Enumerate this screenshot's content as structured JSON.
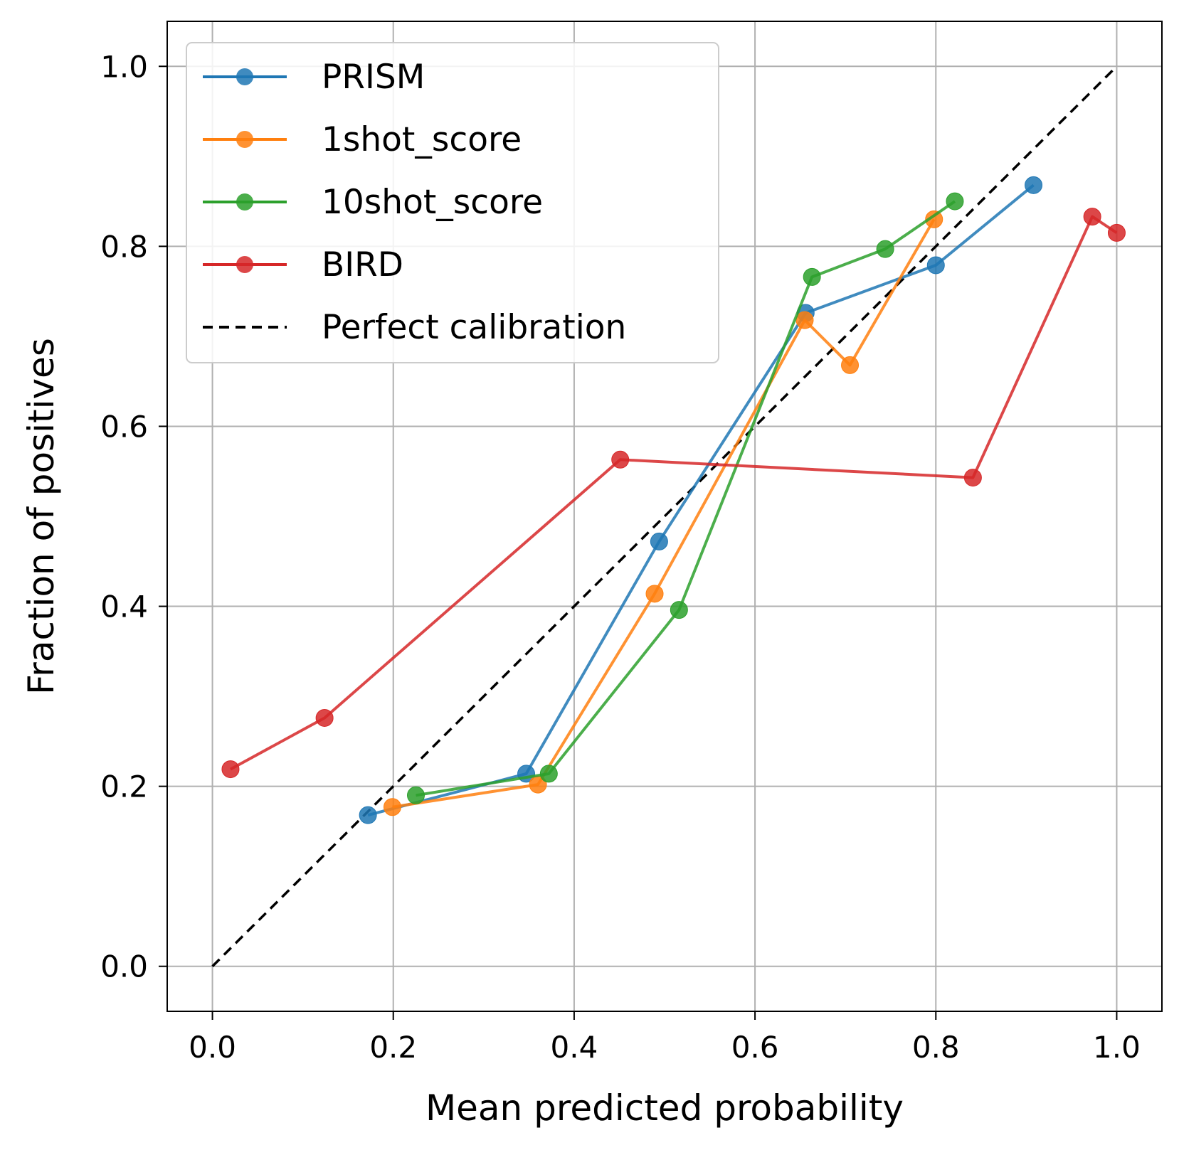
{
  "chart_data": {
    "type": "line",
    "title": "",
    "xlabel": "Mean predicted probability",
    "ylabel": "Fraction of positives",
    "xlim": [
      -0.05,
      1.05
    ],
    "ylim": [
      -0.05,
      1.05
    ],
    "grid": true,
    "legend_position": "top-left",
    "xticks": [
      0.0,
      0.2,
      0.4,
      0.6,
      0.8,
      1.0
    ],
    "yticks": [
      0.0,
      0.2,
      0.4,
      0.6,
      0.8,
      1.0
    ],
    "xtick_labels": [
      "0.0",
      "0.2",
      "0.4",
      "0.6",
      "0.8",
      "1.0"
    ],
    "ytick_labels": [
      "0.0",
      "0.2",
      "0.4",
      "0.6",
      "0.8",
      "1.0"
    ],
    "series": [
      {
        "name": "PRISM",
        "color": "#1f77b4",
        "marker": "circle",
        "x": [
          0.172,
          0.347,
          0.494,
          0.656,
          0.8,
          0.908
        ],
        "y": [
          0.168,
          0.214,
          0.472,
          0.726,
          0.779,
          0.868
        ]
      },
      {
        "name": "1shot_score",
        "color": "#ff7f0e",
        "marker": "circle",
        "x": [
          0.199,
          0.36,
          0.489,
          0.655,
          0.705,
          0.798
        ],
        "y": [
          0.177,
          0.202,
          0.414,
          0.718,
          0.668,
          0.83
        ]
      },
      {
        "name": "10shot_score",
        "color": "#2ca02c",
        "marker": "circle",
        "x": [
          0.225,
          0.372,
          0.516,
          0.663,
          0.744,
          0.821
        ],
        "y": [
          0.19,
          0.214,
          0.396,
          0.766,
          0.797,
          0.85
        ]
      },
      {
        "name": "BIRD",
        "color": "#d62728",
        "marker": "circle",
        "x": [
          0.02,
          0.124,
          0.451,
          0.841,
          0.973,
          1.0
        ],
        "y": [
          0.219,
          0.276,
          0.563,
          0.543,
          0.833,
          0.815
        ]
      },
      {
        "name": "Perfect calibration",
        "color": "#000000",
        "style": "dashed",
        "x": [
          0.0,
          1.0
        ],
        "y": [
          0.0,
          1.0
        ]
      }
    ]
  }
}
